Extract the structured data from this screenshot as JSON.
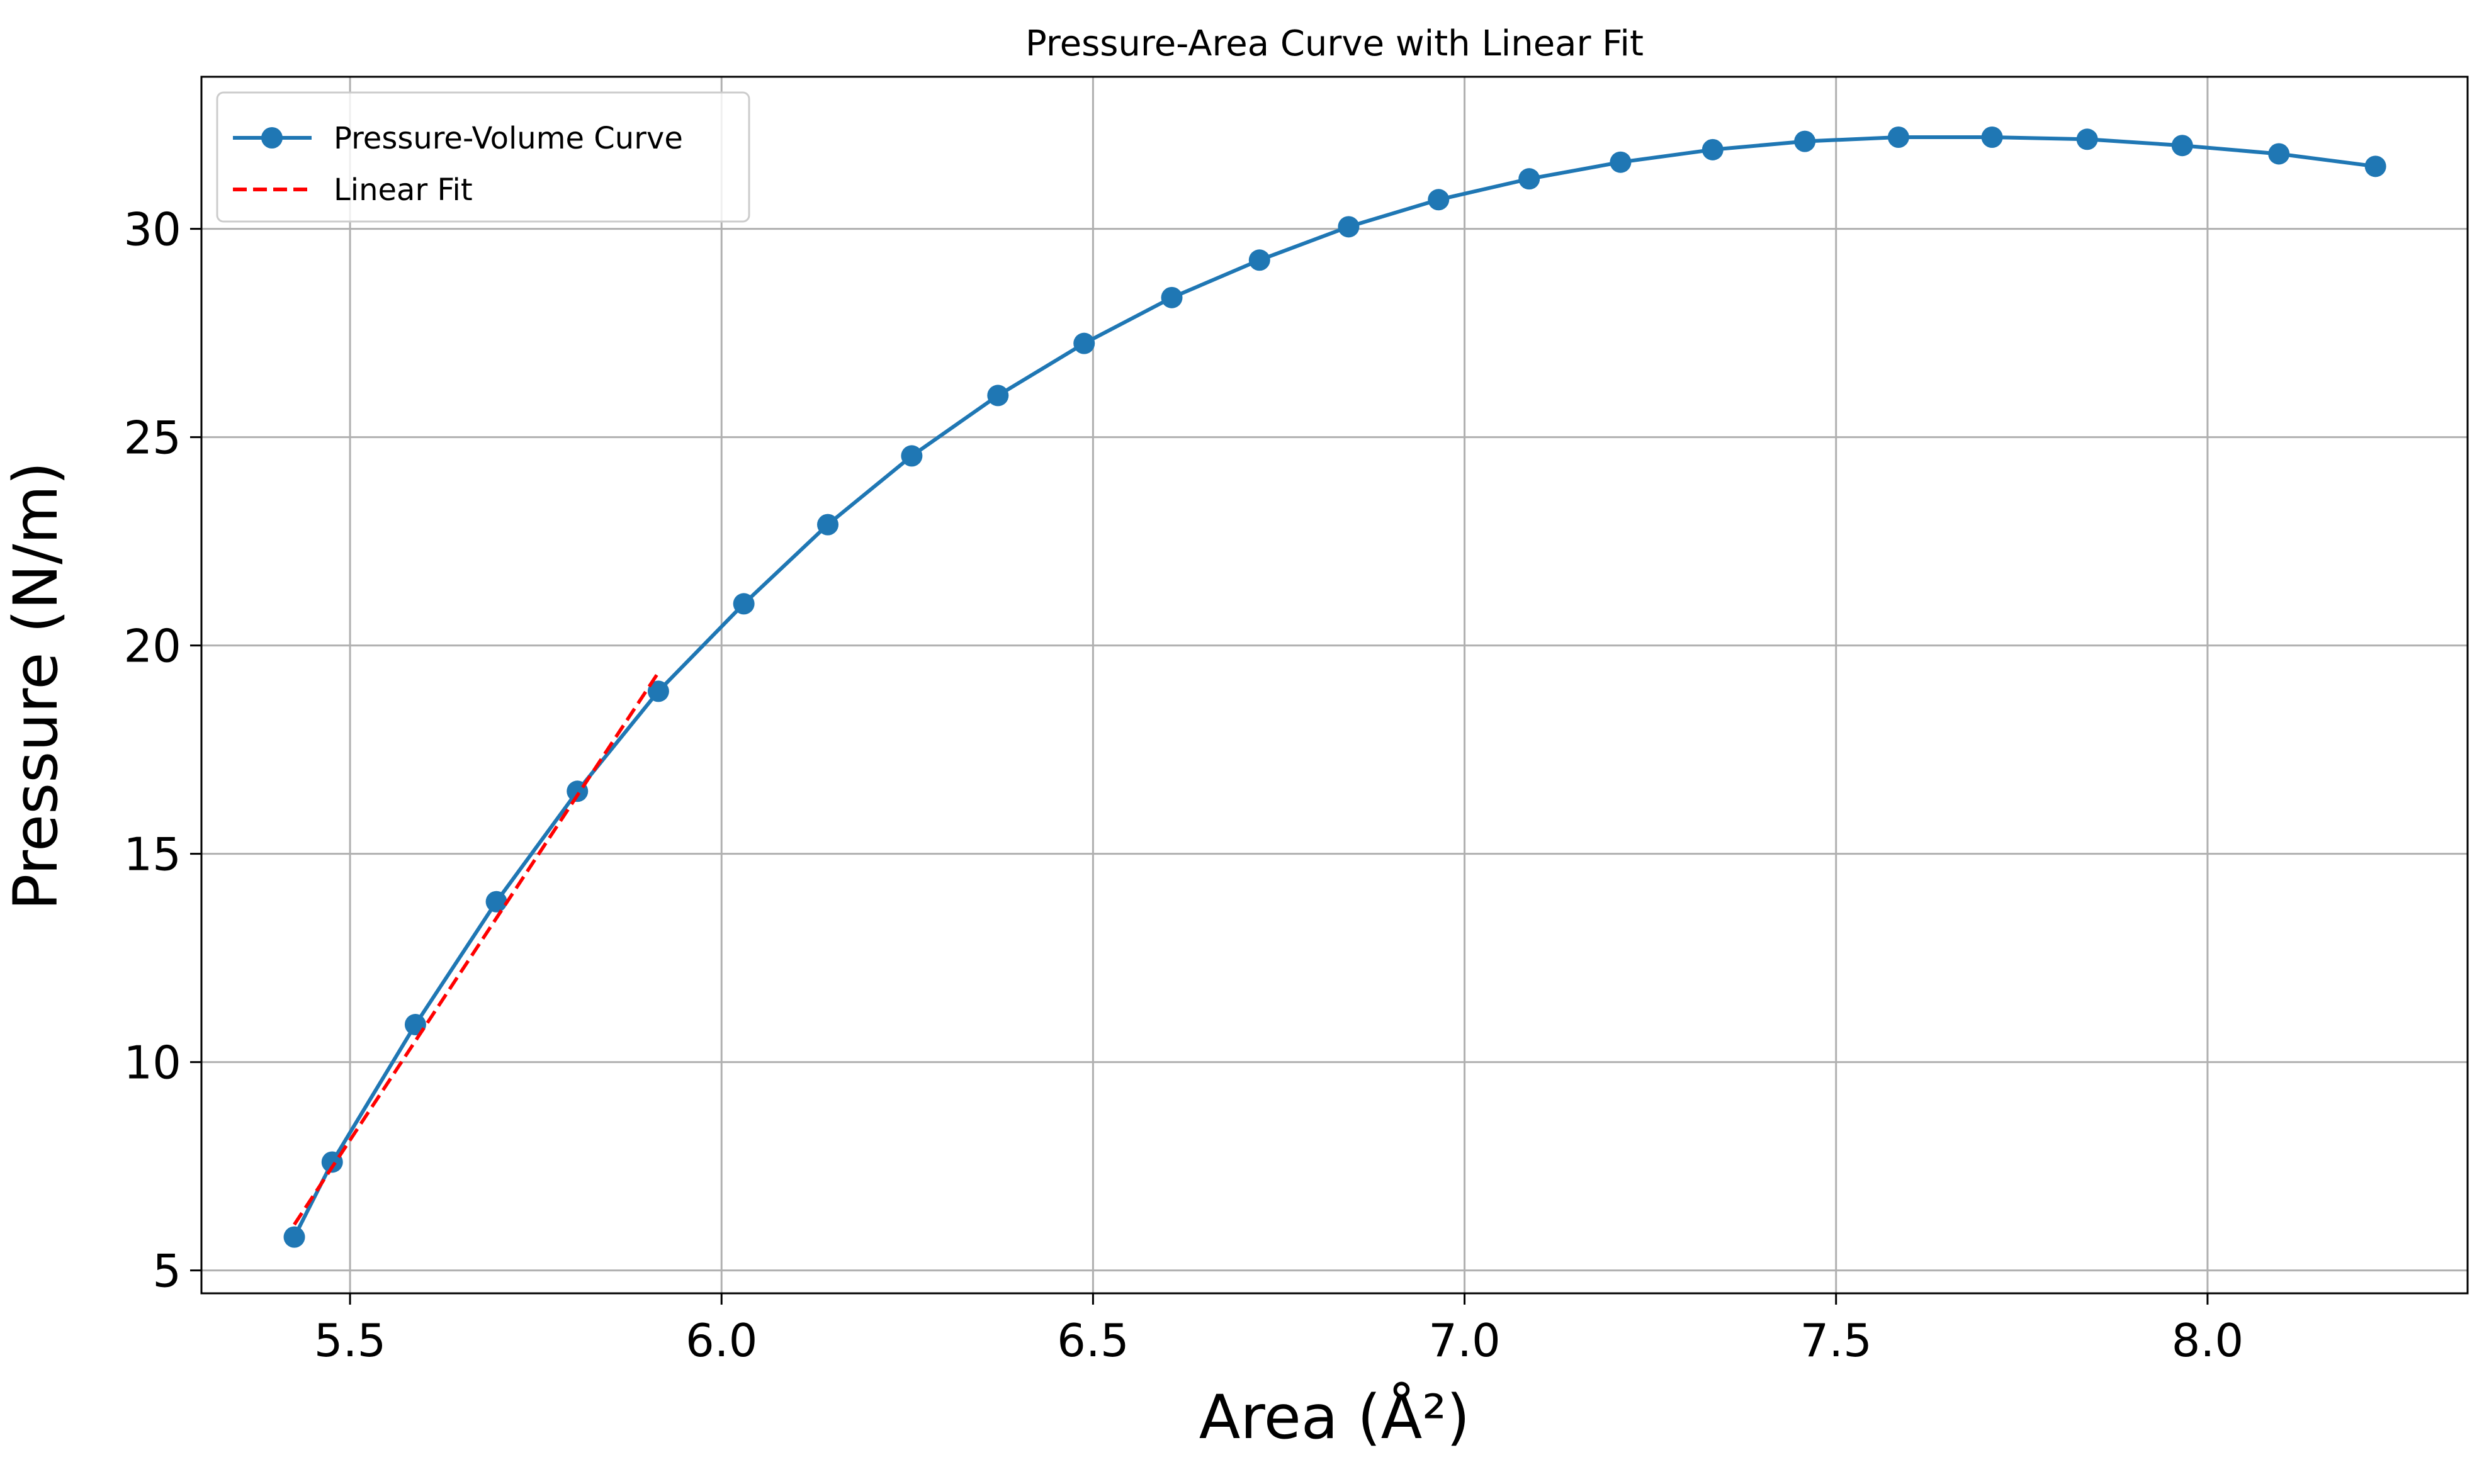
{
  "chart_data": {
    "type": "line",
    "title": "Pressure-Area Curve with Linear Fit",
    "xlabel": "Area (Å²)",
    "ylabel": "Pressure (N/m)",
    "xlim": [
      5.3,
      8.35
    ],
    "ylim": [
      4.45,
      33.65
    ],
    "xticks": [
      5.5,
      6.0,
      6.5,
      7.0,
      7.5,
      8.0
    ],
    "xtick_labels": [
      "5.5",
      "6.0",
      "6.5",
      "7.0",
      "7.5",
      "8.0"
    ],
    "yticks": [
      5,
      10,
      15,
      20,
      25,
      30
    ],
    "ytick_labels": [
      "5",
      "10",
      "15",
      "20",
      "25",
      "30"
    ],
    "grid": true,
    "legend_position": "top-left",
    "series": [
      {
        "name": "Pressure-Volume Curve",
        "color": "#1f77b4",
        "style": "solid-with-markers",
        "x": [
          5.425,
          5.476,
          5.588,
          5.697,
          5.806,
          5.915,
          6.03,
          6.143,
          6.256,
          6.372,
          6.488,
          6.606,
          6.724,
          6.844,
          6.965,
          7.087,
          7.21,
          7.334,
          7.458,
          7.584,
          7.71,
          7.838,
          7.966,
          8.096,
          8.226
        ],
        "y": [
          5.8,
          7.6,
          10.9,
          13.85,
          16.5,
          18.9,
          21.0,
          22.9,
          24.55,
          26.0,
          27.25,
          28.35,
          29.25,
          30.05,
          30.7,
          31.2,
          31.6,
          31.9,
          32.1,
          32.2,
          32.2,
          32.15,
          32.0,
          31.8,
          31.5
        ]
      },
      {
        "name": "Linear Fit",
        "color": "#ff0000",
        "style": "dashed",
        "x": [
          5.425,
          5.915
        ],
        "y": [
          6.1,
          19.35
        ]
      }
    ]
  }
}
